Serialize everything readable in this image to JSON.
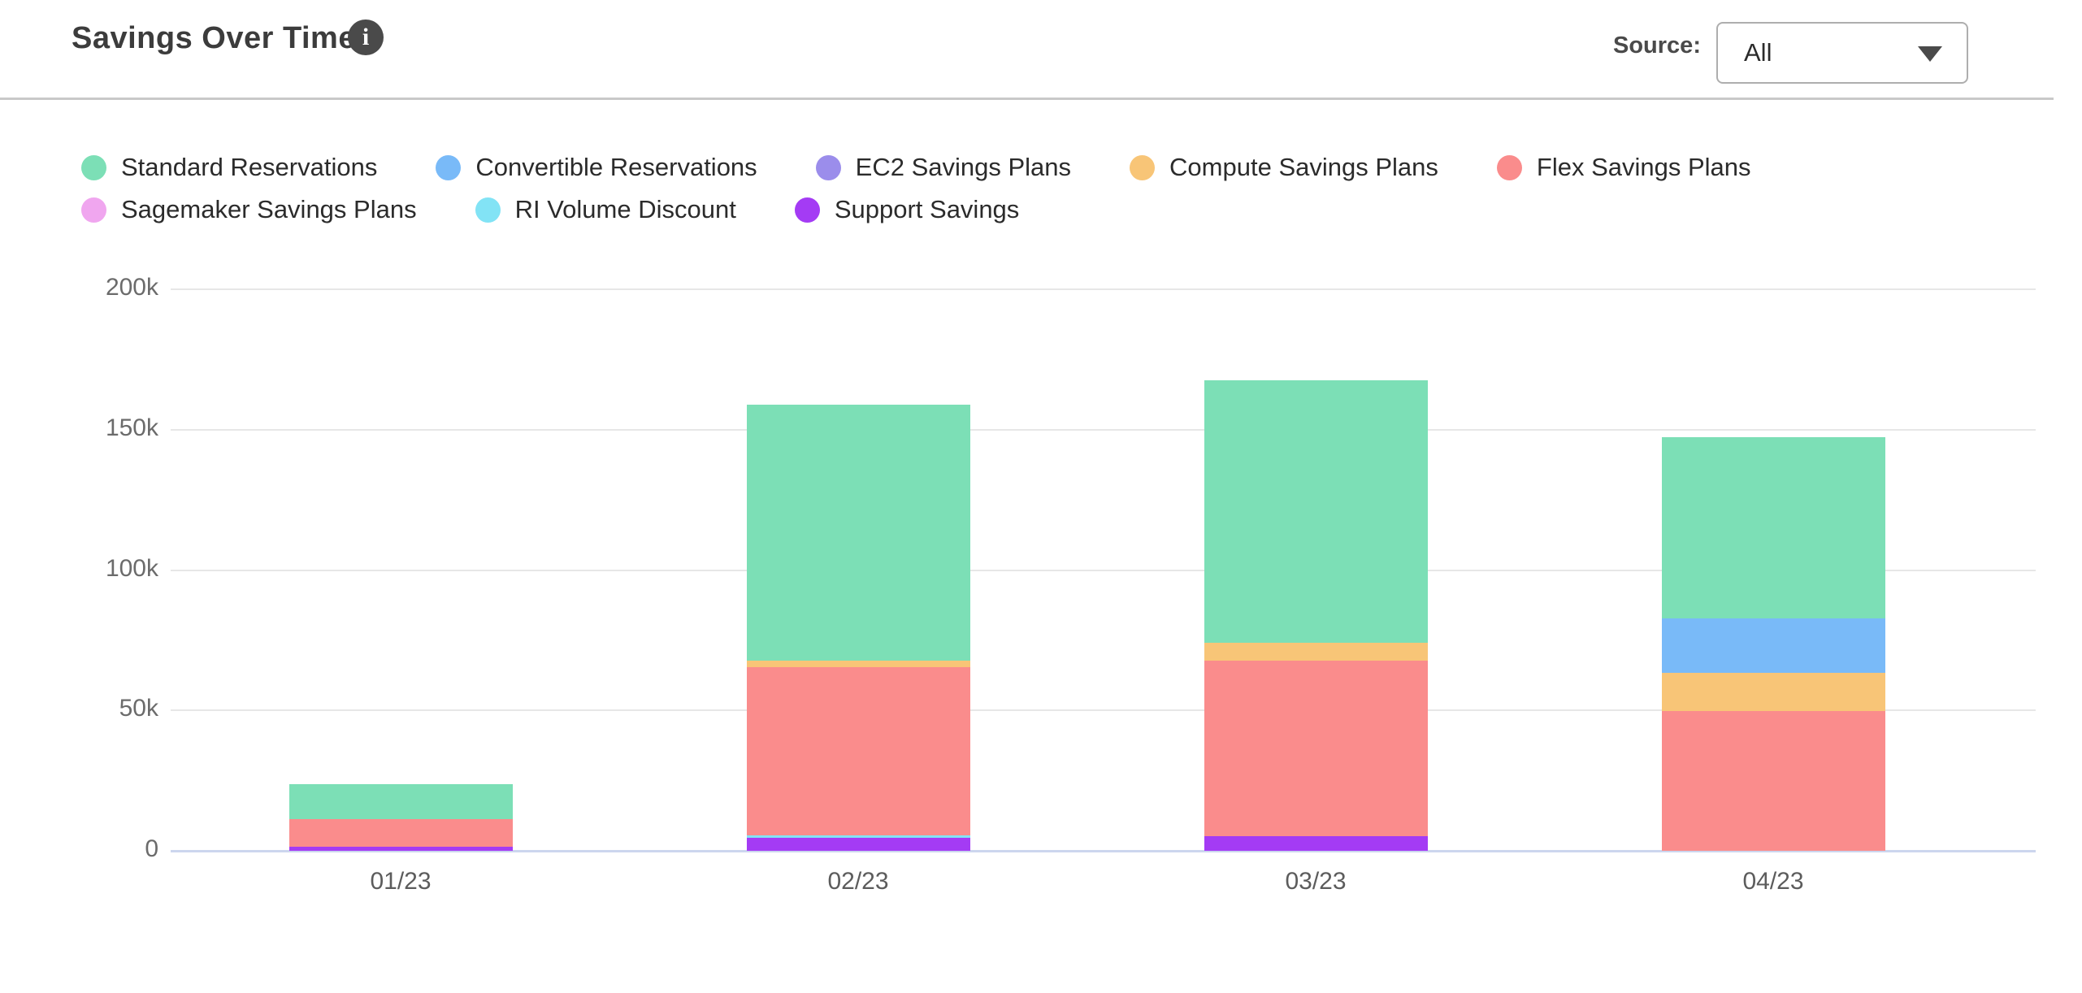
{
  "header": {
    "title": "Savings Over Time",
    "source_label": "Source:",
    "source_value": "All"
  },
  "chart_data": {
    "type": "bar",
    "stacked": true,
    "title": "Savings Over Time",
    "xlabel": "",
    "ylabel": "",
    "unit": "USD thousands (k)",
    "grid": true,
    "legend_position": "top",
    "categories": [
      "01/23",
      "02/23",
      "03/23",
      "04/23"
    ],
    "series": [
      {
        "name": "Standard Reservations",
        "color": "#7CDFB6",
        "values_k": [
          12.4,
          91.2,
          93.5,
          64.5
        ]
      },
      {
        "name": "Convertible Reservations",
        "color": "#79BAF8",
        "values_k": [
          0,
          0,
          0,
          19.4
        ]
      },
      {
        "name": "EC2 Savings Plans",
        "color": "#9B8DEB",
        "values_k": [
          0,
          0,
          0,
          0
        ]
      },
      {
        "name": "Compute Savings Plans",
        "color": "#F8C577",
        "values_k": [
          0,
          2.3,
          6.4,
          13.6
        ]
      },
      {
        "name": "Flex Savings Plans",
        "color": "#FA8C8C",
        "values_k": [
          9.9,
          59.9,
          62.5,
          49.8
        ]
      },
      {
        "name": "Sagemaker Savings Plans",
        "color": "#F0A6EF",
        "values_k": [
          0,
          0,
          0,
          0
        ]
      },
      {
        "name": "RI Volume Discount",
        "color": "#82E3F5",
        "values_k": [
          0,
          0.9,
          0,
          0
        ]
      },
      {
        "name": "Support Savings",
        "color": "#A43BF4",
        "values_k": [
          1.4,
          4.6,
          5.2,
          0
        ]
      }
    ],
    "stack_order_note": "stacked bottom-to-top in reverse legend order (Support Savings at bottom, Standard Reservations on top)",
    "ylim": [
      0,
      200
    ],
    "yticks": [
      {
        "label": "200k",
        "value": 200
      },
      {
        "label": "150k",
        "value": 150
      },
      {
        "label": "100k",
        "value": 100
      },
      {
        "label": "50k",
        "value": 50
      },
      {
        "label": "0",
        "value": 0
      }
    ],
    "totals_k": [
      23.7,
      158.9,
      167.6,
      147.3
    ]
  }
}
